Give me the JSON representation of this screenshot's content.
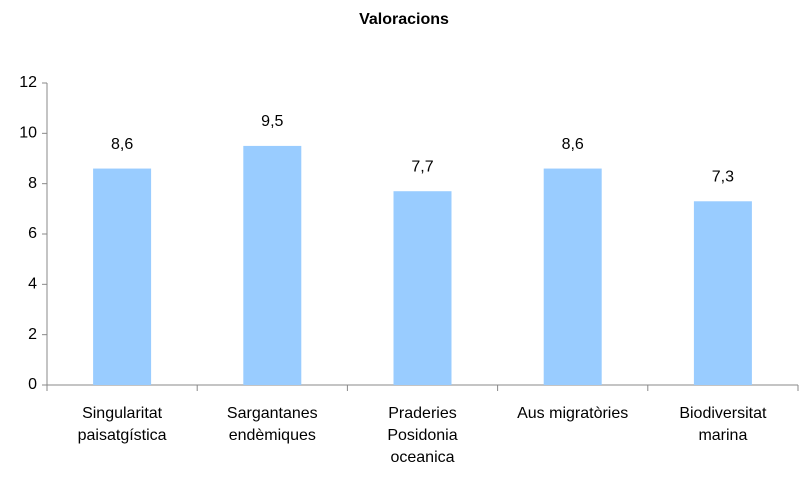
{
  "chart_data": {
    "type": "bar",
    "title": "Valoracions",
    "categories": [
      "Singularitat\npaisatgística",
      "Sargantanes\nendèmiques",
      "Praderies\nPosidonia\noceanica",
      "Aus migratòries",
      "Biodiversitat\nmarina"
    ],
    "values": [
      8.6,
      9.5,
      7.7,
      8.6,
      7.3
    ],
    "value_labels": [
      "8,6",
      "9,5",
      "7,7",
      "8,6",
      "7,3"
    ],
    "color": "#99ccff",
    "ylim": [
      0,
      12
    ],
    "yticks": [
      0,
      2,
      4,
      6,
      8,
      10,
      12
    ],
    "grid": false
  }
}
